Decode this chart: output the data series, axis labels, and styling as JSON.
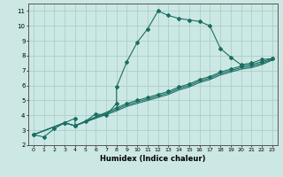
{
  "title": "",
  "xlabel": "Humidex (Indice chaleur)",
  "ylabel": "",
  "bg_color": "#cce8e4",
  "grid_color": "#aacfca",
  "line_color": "#1a6e62",
  "xlim": [
    -0.5,
    23.5
  ],
  "ylim": [
    2,
    11.5
  ],
  "xticks": [
    0,
    1,
    2,
    3,
    4,
    5,
    6,
    7,
    8,
    9,
    10,
    11,
    12,
    13,
    14,
    15,
    16,
    17,
    18,
    19,
    20,
    21,
    22,
    23
  ],
  "yticks": [
    2,
    3,
    4,
    5,
    6,
    7,
    8,
    9,
    10,
    11
  ],
  "curves": [
    {
      "x": [
        0,
        1,
        2,
        3,
        4,
        4,
        5,
        6,
        7,
        8,
        8,
        9,
        10,
        11,
        12,
        13,
        14,
        15,
        16,
        17,
        18,
        19,
        20,
        21,
        22,
        23
      ],
      "y": [
        2.7,
        2.55,
        3.1,
        3.5,
        3.8,
        3.3,
        3.6,
        4.1,
        4.0,
        4.8,
        5.9,
        7.6,
        8.9,
        9.8,
        11.0,
        10.7,
        10.5,
        10.4,
        10.3,
        10.0,
        8.5,
        7.9,
        7.4,
        7.5,
        7.75,
        7.8
      ],
      "marker": true
    },
    {
      "x": [
        0,
        3,
        4,
        8,
        9,
        10,
        11,
        12,
        13,
        14,
        15,
        16,
        17,
        18,
        19,
        20,
        21,
        22,
        23
      ],
      "y": [
        2.7,
        3.5,
        3.3,
        4.5,
        4.8,
        5.0,
        5.2,
        5.4,
        5.6,
        5.9,
        6.1,
        6.4,
        6.6,
        6.9,
        7.1,
        7.3,
        7.4,
        7.6,
        7.8
      ],
      "marker": true
    },
    {
      "x": [
        0,
        3,
        4,
        8,
        9,
        10,
        11,
        12,
        13,
        14,
        15,
        16,
        17,
        18,
        19,
        20,
        21,
        22,
        23
      ],
      "y": [
        2.7,
        3.5,
        3.3,
        4.4,
        4.7,
        4.9,
        5.1,
        5.3,
        5.5,
        5.8,
        6.0,
        6.3,
        6.5,
        6.8,
        7.0,
        7.2,
        7.3,
        7.5,
        7.75
      ],
      "marker": false
    },
    {
      "x": [
        0,
        3,
        4,
        8,
        9,
        10,
        11,
        12,
        13,
        14,
        15,
        16,
        17,
        18,
        19,
        20,
        21,
        22,
        23
      ],
      "y": [
        2.7,
        3.5,
        3.3,
        4.3,
        4.6,
        4.8,
        5.0,
        5.2,
        5.4,
        5.7,
        5.9,
        6.2,
        6.4,
        6.7,
        6.9,
        7.1,
        7.2,
        7.4,
        7.7
      ],
      "marker": false
    }
  ]
}
